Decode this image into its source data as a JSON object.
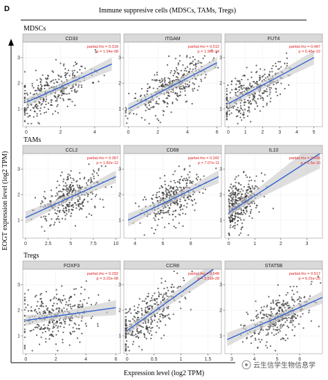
{
  "panel_letter": "D",
  "title": "Immune suppresive cells (MDSCs, TAMs, Tregs)",
  "ylabel": "EOGT expression level (log2 TPM)",
  "xlabel": "Expression level (log2 TPM)",
  "watermark": "云生信学生物信息学",
  "colors": {
    "points": "#3a3a3a",
    "line": "#3060d0",
    "band": "#c8c8c8",
    "strip": "#d9d9d9",
    "stat": "#e02020"
  },
  "chart_data": [
    {
      "type": "scatter",
      "group": "MDSCs",
      "title": "CD33",
      "stat_rho": "partial.rho = 0.318",
      "stat_p": "p = 1.54e-08",
      "xlim": [
        -0.2,
        5.5
      ],
      "ylim": [
        0.3,
        3.6
      ],
      "xticks": [
        0,
        2,
        4
      ],
      "yticks": [
        1,
        2,
        3
      ],
      "fit": {
        "x": [
          0,
          5
        ],
        "y": [
          1.25,
          2.75
        ]
      },
      "n": 330,
      "seed": 11,
      "x_center": 1.5,
      "x_spread": 1.1,
      "y_sd": 0.42
    },
    {
      "type": "scatter",
      "group": "MDSCs",
      "title": "ITGAM",
      "stat_rho": "partial.rho = 0.512",
      "stat_p": "p = 1.96e-24",
      "xlim": [
        -0.3,
        6.3
      ],
      "ylim": [
        0.3,
        3.6
      ],
      "xticks": [
        0,
        2,
        4,
        6
      ],
      "yticks": [
        1,
        2,
        3
      ],
      "fit": {
        "x": [
          0,
          6
        ],
        "y": [
          1.0,
          2.8
        ]
      },
      "n": 330,
      "seed": 23,
      "x_center": 2.8,
      "x_spread": 1.3,
      "y_sd": 0.4
    },
    {
      "type": "scatter",
      "group": "MDSCs",
      "title": "FUT4",
      "stat_rho": "partial.rho = 0.487",
      "stat_p": "p = 6.45e-22",
      "xlim": [
        -0.2,
        5.5
      ],
      "ylim": [
        0.3,
        3.6
      ],
      "xticks": [
        0,
        1,
        2,
        3,
        4,
        5
      ],
      "yticks": [
        1,
        2,
        3
      ],
      "fit": {
        "x": [
          0,
          5
        ],
        "y": [
          1.2,
          3.0
        ]
      },
      "n": 330,
      "seed": 37,
      "x_center": 1.3,
      "x_spread": 1.0,
      "y_sd": 0.42
    },
    {
      "type": "scatter",
      "group": "TAMs",
      "title": "CCL2",
      "stat_rho": "partial.rho = 0.367",
      "stat_p": "p = 1.82e-12",
      "xlim": [
        -0.3,
        10.5
      ],
      "ylim": [
        0.3,
        3.6
      ],
      "xticks": [
        0,
        2.5,
        5,
        7.5,
        10
      ],
      "xticklabels": [
        "0",
        "2.5",
        "5",
        "7.5",
        "10"
      ],
      "yticks": [
        1,
        2,
        3
      ],
      "fit": {
        "x": [
          0,
          10
        ],
        "y": [
          1.1,
          2.7
        ]
      },
      "n": 330,
      "seed": 41,
      "x_center": 5.0,
      "x_spread": 1.8,
      "y_sd": 0.42
    },
    {
      "type": "scatter",
      "group": "TAMs",
      "title": "CD68",
      "stat_rho": "partial.rho = 0.342",
      "stat_p": "p = 7.07e-11",
      "xlim": [
        3.2,
        10.2
      ],
      "ylim": [
        0.3,
        3.6
      ],
      "xticks": [
        4,
        6,
        8
      ],
      "yticks": [
        1,
        2,
        3
      ],
      "fit": {
        "x": [
          3.5,
          10
        ],
        "y": [
          1.0,
          2.7
        ]
      },
      "n": 330,
      "seed": 53,
      "x_center": 6.8,
      "x_spread": 1.1,
      "y_sd": 0.42
    },
    {
      "type": "scatter",
      "group": "TAMs",
      "title": "IL10",
      "stat_rho": "partial.rho = 0.536",
      "stat_p": "p = 1.5e-10",
      "xlim": [
        -0.15,
        3.6
      ],
      "ylim": [
        0.3,
        3.6
      ],
      "xticks": [
        0,
        1,
        2,
        3
      ],
      "yticks": [
        1,
        2,
        3
      ],
      "fit": {
        "x": [
          0,
          3.5
        ],
        "y": [
          1.3,
          3.6
        ]
      },
      "n": 330,
      "seed": 67,
      "x_center": 0.3,
      "x_spread": 0.5,
      "y_sd": 0.45
    },
    {
      "type": "scatter",
      "group": "Tregs",
      "title": "FOXP3",
      "stat_rho": "partial.rho = 0.292",
      "stat_p": "p = 3.22e-08",
      "xlim": [
        -0.2,
        6.3
      ],
      "ylim": [
        0.3,
        3.6
      ],
      "xticks": [
        0,
        2,
        4,
        6
      ],
      "yticks": [
        1,
        2,
        3
      ],
      "fit": {
        "x": [
          0,
          6
        ],
        "y": [
          1.6,
          2.1
        ]
      },
      "n": 330,
      "seed": 71,
      "x_center": 2.0,
      "x_spread": 1.3,
      "y_sd": 0.5
    },
    {
      "type": "scatter",
      "group": "Tregs",
      "title": "CCR8",
      "stat_rho": "partial.rho = 0.548",
      "stat_p": "p = 3.51e-28",
      "xlim": [
        -0.06,
        1.75
      ],
      "ylim": [
        0.3,
        3.6
      ],
      "xticks": [
        0,
        0.5,
        1,
        1.5
      ],
      "yticks": [
        1,
        2,
        3
      ],
      "fit": {
        "x": [
          0,
          1.6
        ],
        "y": [
          1.2,
          3.6
        ]
      },
      "n": 330,
      "seed": 83,
      "x_center": 0.35,
      "x_spread": 0.35,
      "y_sd": 0.45
    },
    {
      "type": "scatter",
      "group": "Tregs",
      "title": "STAT5B",
      "stat_rho": "partial.rho = 0.517",
      "stat_p": "p = 6.01e-25",
      "xlim": [
        2.7,
        7.0
      ],
      "ylim": [
        0.3,
        3.6
      ],
      "xticks": [
        3,
        4,
        5,
        6
      ],
      "yticks": [
        1,
        2,
        3
      ],
      "fit": {
        "x": [
          2.8,
          7.0
        ],
        "y": [
          0.85,
          2.5
        ]
      },
      "n": 330,
      "seed": 97,
      "x_center": 5.0,
      "x_spread": 0.75,
      "y_sd": 0.45
    }
  ],
  "groups": [
    "MDSCs",
    "TAMs",
    "Tregs"
  ]
}
